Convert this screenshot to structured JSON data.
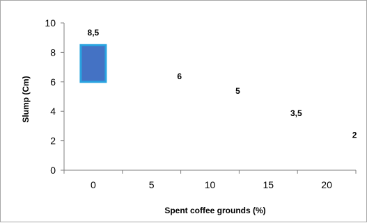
{
  "chart_data": {
    "type": "bar",
    "xlabel": "Spent coffee grounds (%)",
    "ylabel": "Slump (Cm)",
    "categories": [
      "0",
      "5",
      "10",
      "15",
      "20"
    ],
    "values": [
      8.5,
      6,
      5,
      3.5,
      2
    ],
    "data_labels": [
      "8,5",
      "6",
      "5",
      "3,5",
      "2"
    ],
    "ylim": [
      0,
      10
    ],
    "yticks": [
      "0",
      "2",
      "4",
      "6",
      "8",
      "10"
    ],
    "bar_bottom": 6,
    "grid": false,
    "bar_fill": "#4472c4",
    "bar_outline": "#29a3e0"
  }
}
